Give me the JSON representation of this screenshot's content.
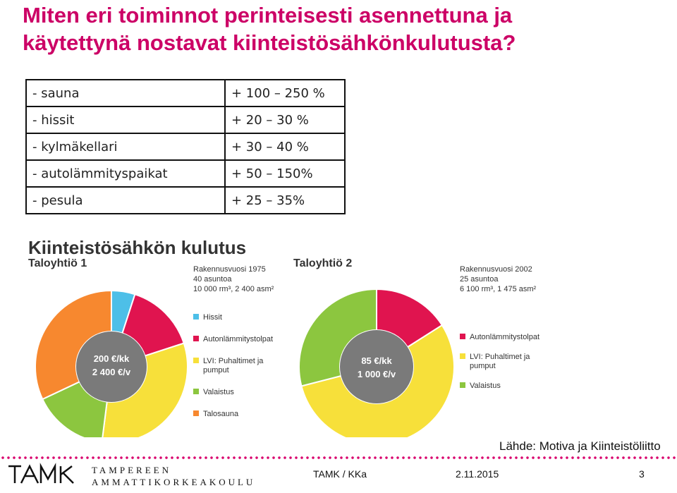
{
  "slide": {
    "title_line1": "Miten eri toiminnot perinteisesti asennettuna ja",
    "title_line2": "käytettynä nostavat kiinteistösähkönkulutusta?"
  },
  "table": {
    "rows": [
      {
        "item": "- sauna",
        "increase": "+ 100 – 250 %"
      },
      {
        "item": "- hissit",
        "increase": "+ 20 – 30 %"
      },
      {
        "item": "- kylmäkellari",
        "increase": "+ 30 – 40 %"
      },
      {
        "item": "- autolämmityspaikat",
        "increase": "+ 50 – 150%"
      },
      {
        "item": "- pesula",
        "increase": "+ 25 – 35%"
      }
    ]
  },
  "colors": {
    "title": "#cc0066",
    "hissit": "#4dbfe8",
    "autonlammitystolpat": "#e0144f",
    "lvi": "#f7e03a",
    "valaistus": "#8cc63f",
    "talosauna": "#f7882f"
  },
  "chart_data": [
    {
      "type": "pie",
      "title": "Kiinteistösähkön kulutus",
      "subtitle": "Taloyhtiö 1",
      "info": [
        "Rakennusvuosi 1975",
        "40 asuntoa",
        "10 000 rm³, 2 400 asm²"
      ],
      "center_label": [
        "200 €/kk",
        "2 400 €/v"
      ],
      "slices": [
        {
          "label": "Hissit",
          "value": 5,
          "color": "#4dbfe8"
        },
        {
          "label": "Autonlämmitystolpat",
          "value": 15,
          "color": "#e0144f"
        },
        {
          "label": "LVI: Puhaltimet ja pumput",
          "value": 32,
          "color": "#f7e03a"
        },
        {
          "label": "Valaistus",
          "value": 16,
          "color": "#8cc63f"
        },
        {
          "label": "Talosauna",
          "value": 32,
          "color": "#f7882f"
        }
      ],
      "legend": [
        "Hissit",
        "Autonlämmitystolpat",
        "LVI: Puhaltimet ja pumput",
        "Valaistus",
        "Talosauna"
      ],
      "legend_position": "right"
    },
    {
      "type": "pie",
      "subtitle": "Taloyhtiö 2",
      "info": [
        "Rakennusvuosi 2002",
        "25 asuntoa",
        "6 100 rm³, 1 475 asm²"
      ],
      "center_label": [
        "85 €/kk",
        "1 000 €/v"
      ],
      "slices": [
        {
          "label": "Autonlämmitystolpat",
          "value": 16,
          "color": "#e0144f"
        },
        {
          "label": "LVI: Puhaltimet ja pumput",
          "value": 55,
          "color": "#f7e03a"
        },
        {
          "label": "Valaistus",
          "value": 29,
          "color": "#8cc63f"
        }
      ],
      "legend": [
        "Autonlämmitystolpat",
        "LVI: Puhaltimet ja pumput",
        "Valaistus"
      ],
      "legend_position": "right"
    }
  ],
  "source": "Lähde: Motiva ja Kiinteistöliitto",
  "footer": {
    "logo": "TAMK",
    "school_line1": "TAMPEREEN",
    "school_line2": "AMMATTIKORKEAKOULU",
    "author": "TAMK / KKa",
    "date": "2.11.2015",
    "page": "3"
  }
}
